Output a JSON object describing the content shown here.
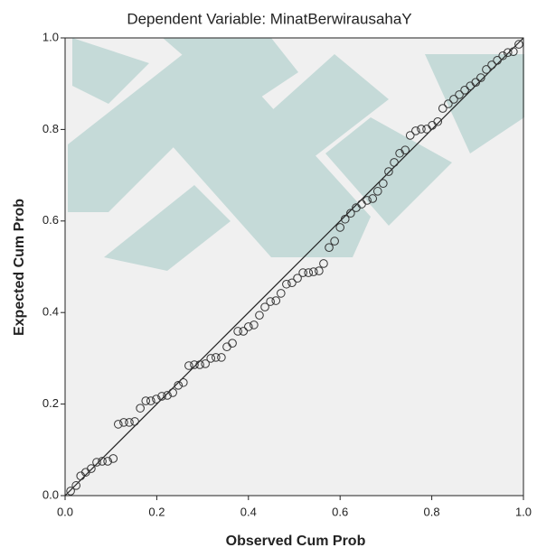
{
  "chart_data": {
    "type": "scatter",
    "title": "Dependent Variable: MinatBerwirausahaY",
    "x_label": "Observed Cum Prob",
    "y_label": "Expected Cum Prob",
    "xlim": [
      0,
      1
    ],
    "ylim": [
      0,
      1
    ],
    "xticks": [
      {
        "value": 0,
        "label": "0.0"
      },
      0.2,
      0.4,
      0.6,
      0.8,
      {
        "value": 1,
        "label": "1.0"
      }
    ],
    "yticks": [
      {
        "value": 0,
        "label": "0.0"
      },
      0.2,
      0.4,
      0.6,
      0.8,
      {
        "value": 1,
        "label": "1.0"
      }
    ],
    "series": [
      {
        "color": "#333333",
        "x": [
          0.012,
          0.024,
          0.034,
          0.045,
          0.057,
          0.069,
          0.081,
          0.093,
          0.105,
          0.116,
          0.128,
          0.14,
          0.152,
          0.164,
          0.176,
          0.187,
          0.199,
          0.211,
          0.223,
          0.235,
          0.247,
          0.258,
          0.27,
          0.282,
          0.294,
          0.306,
          0.318,
          0.329,
          0.341,
          0.353,
          0.365,
          0.377,
          0.389,
          0.4,
          0.412,
          0.424,
          0.436,
          0.448,
          0.46,
          0.471,
          0.483,
          0.495,
          0.507,
          0.519,
          0.531,
          0.542,
          0.554,
          0.564,
          0.576,
          0.588,
          0.6,
          0.611,
          0.623,
          0.635,
          0.647,
          0.659,
          0.671,
          0.682,
          0.694,
          0.706,
          0.718,
          0.73,
          0.742,
          0.753,
          0.765,
          0.777,
          0.789,
          0.801,
          0.813,
          0.824,
          0.836,
          0.848,
          0.86,
          0.872,
          0.884,
          0.896,
          0.907,
          0.919,
          0.931,
          0.943,
          0.955,
          0.966,
          0.978,
          0.99
        ],
        "values": [
          0.01,
          0.022,
          0.043,
          0.051,
          0.059,
          0.073,
          0.075,
          0.075,
          0.081,
          0.156,
          0.16,
          0.16,
          0.162,
          0.191,
          0.207,
          0.207,
          0.211,
          0.217,
          0.219,
          0.225,
          0.241,
          0.247,
          0.284,
          0.286,
          0.286,
          0.288,
          0.3,
          0.302,
          0.302,
          0.325,
          0.333,
          0.359,
          0.359,
          0.369,
          0.373,
          0.394,
          0.412,
          0.424,
          0.426,
          0.442,
          0.462,
          0.465,
          0.475,
          0.487,
          0.487,
          0.489,
          0.491,
          0.507,
          0.542,
          0.556,
          0.586,
          0.604,
          0.617,
          0.629,
          0.637,
          0.645,
          0.649,
          0.665,
          0.682,
          0.708,
          0.728,
          0.748,
          0.755,
          0.787,
          0.797,
          0.801,
          0.801,
          0.809,
          0.817,
          0.846,
          0.856,
          0.866,
          0.876,
          0.886,
          0.895,
          0.903,
          0.913,
          0.931,
          0.941,
          0.951,
          0.961,
          0.968,
          0.97,
          0.986
        ]
      }
    ]
  }
}
